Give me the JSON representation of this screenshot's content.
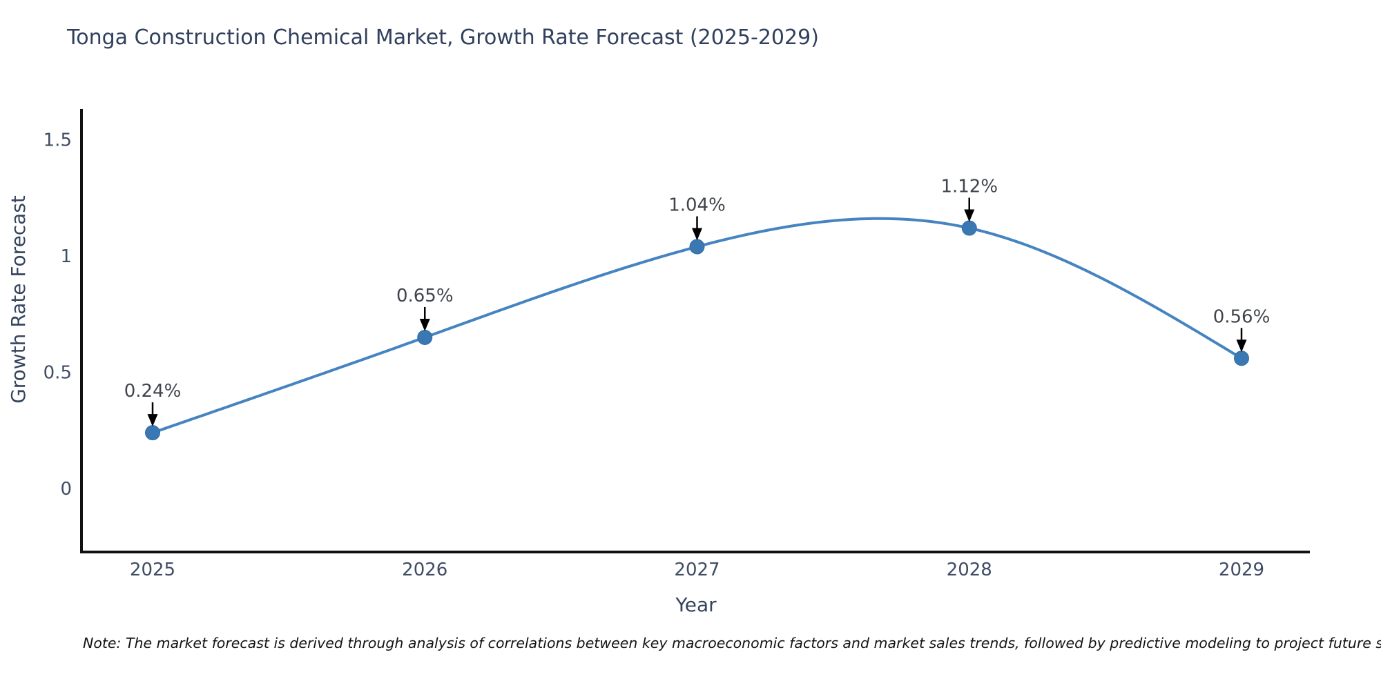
{
  "title": "Tonga Construction Chemical Market, Growth Rate Forecast (2025-2029)",
  "note": {
    "text": "Note: The market forecast is derived through analysis of correlations between key macroeconomic factors and market sales trends, followed by predictive modeling to project future sales"
  },
  "chart_data": {
    "type": "line",
    "title": "Tonga Construction Chemical Market, Growth Rate Forecast (2025-2029)",
    "categories": [
      "2025",
      "2026",
      "2027",
      "2028",
      "2029"
    ],
    "values": [
      0.24,
      0.65,
      1.04,
      1.12,
      0.56
    ],
    "point_labels": [
      "0.24%",
      "0.65%",
      "1.04%",
      "1.12%",
      "0.56%"
    ],
    "xlabel": "Year",
    "ylabel": "Growth Rate Forecast",
    "y_ticks": [
      0,
      0.5,
      1,
      1.5
    ],
    "y_tick_labels": [
      "0",
      "0.5",
      "1",
      "1.5"
    ],
    "ylim": [
      -0.28,
      1.63
    ],
    "smooth": true,
    "grid": false,
    "legend": "none",
    "line_color": "#4584c0",
    "marker_color": "#3a78b4",
    "marker_edge_color": "#336ba3",
    "axis_color": "#111111",
    "arrow_color": "#000000",
    "background_color": "#ffffff"
  }
}
